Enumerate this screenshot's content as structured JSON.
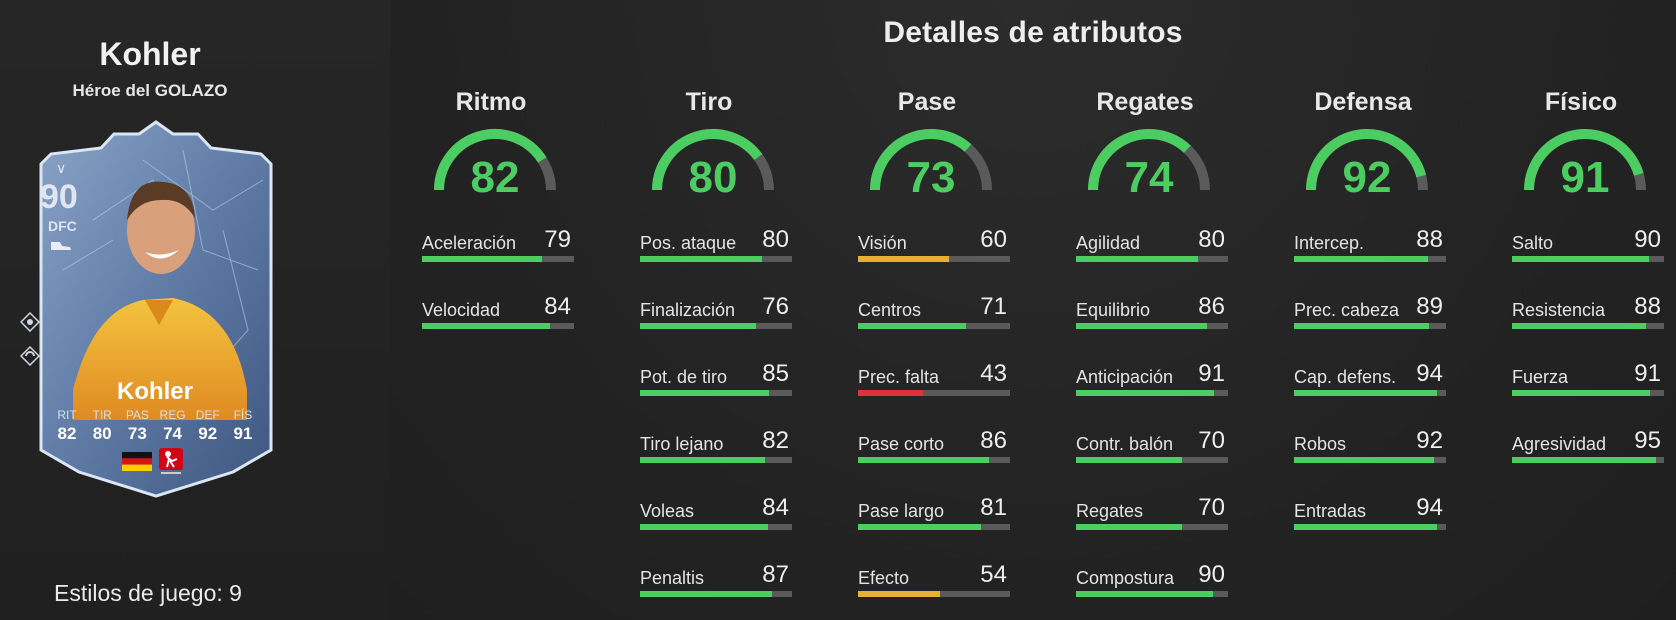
{
  "player": {
    "name": "Kohler",
    "subtitle": "Héroe del GOLAZO"
  },
  "card": {
    "rating": "90",
    "position": "DFC",
    "name": "Kohler",
    "stats": [
      {
        "label": "RIT",
        "value": "82"
      },
      {
        "label": "TIR",
        "value": "80"
      },
      {
        "label": "PAS",
        "value": "73"
      },
      {
        "label": "REG",
        "value": "74"
      },
      {
        "label": "DEF",
        "value": "92"
      },
      {
        "label": "FÍS",
        "value": "91"
      }
    ],
    "colors": {
      "frame": "#dbe6f3",
      "background": "#5f7ba6",
      "accent": "#f0b429"
    }
  },
  "playstyles": "Estilos de juego: 9",
  "title": "Detalles de atributos",
  "colors": {
    "high": "#4ccd62",
    "mid": "#e6b030",
    "low": "#e0303a",
    "track": "#5a5a5a"
  },
  "categories": [
    {
      "name": "Ritmo",
      "value": "82",
      "stats": [
        {
          "label": "Aceleración",
          "value": "79"
        },
        {
          "label": "Velocidad",
          "value": "84"
        }
      ]
    },
    {
      "name": "Tiro",
      "value": "80",
      "stats": [
        {
          "label": "Pos. ataque",
          "value": "80"
        },
        {
          "label": "Finalización",
          "value": "76"
        },
        {
          "label": "Pot. de tiro",
          "value": "85"
        },
        {
          "label": "Tiro lejano",
          "value": "82"
        },
        {
          "label": "Voleas",
          "value": "84"
        },
        {
          "label": "Penaltis",
          "value": "87"
        }
      ]
    },
    {
      "name": "Pase",
      "value": "73",
      "stats": [
        {
          "label": "Visión",
          "value": "60"
        },
        {
          "label": "Centros",
          "value": "71"
        },
        {
          "label": "Prec. falta",
          "value": "43"
        },
        {
          "label": "Pase corto",
          "value": "86"
        },
        {
          "label": "Pase largo",
          "value": "81"
        },
        {
          "label": "Efecto",
          "value": "54"
        }
      ]
    },
    {
      "name": "Regates",
      "value": "74",
      "stats": [
        {
          "label": "Agilidad",
          "value": "80"
        },
        {
          "label": "Equilibrio",
          "value": "86"
        },
        {
          "label": "Anticipación",
          "value": "91"
        },
        {
          "label": "Contr. balón",
          "value": "70"
        },
        {
          "label": "Regates",
          "value": "70"
        },
        {
          "label": "Compostura",
          "value": "90"
        }
      ]
    },
    {
      "name": "Defensa",
      "value": "92",
      "stats": [
        {
          "label": "Intercep.",
          "value": "88"
        },
        {
          "label": "Prec. cabeza",
          "value": "89"
        },
        {
          "label": "Cap. defens.",
          "value": "94"
        },
        {
          "label": "Robos",
          "value": "92"
        },
        {
          "label": "Entradas",
          "value": "94"
        }
      ]
    },
    {
      "name": "Físico",
      "value": "91",
      "stats": [
        {
          "label": "Salto",
          "value": "90"
        },
        {
          "label": "Resistencia",
          "value": "88"
        },
        {
          "label": "Fuerza",
          "value": "91"
        },
        {
          "label": "Agresividad",
          "value": "95"
        }
      ]
    }
  ]
}
